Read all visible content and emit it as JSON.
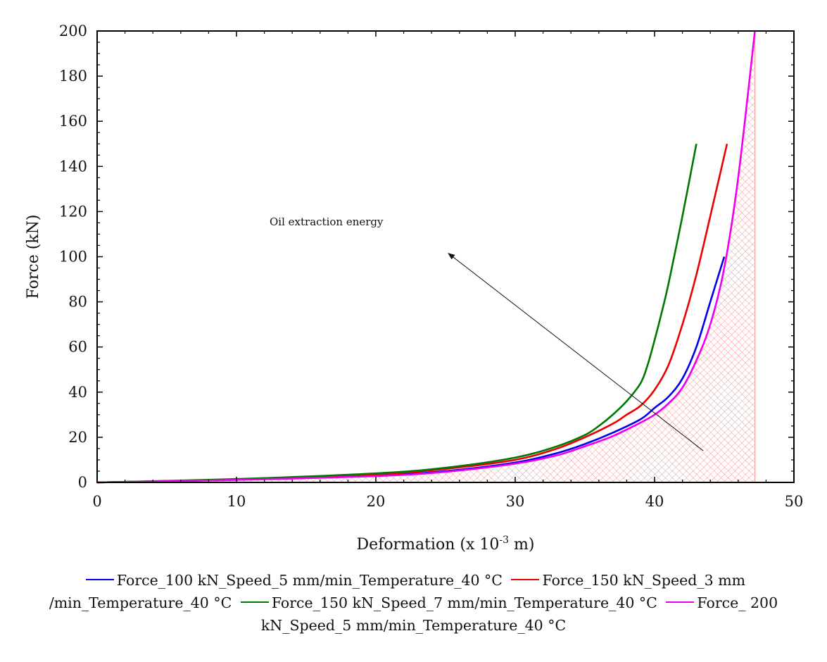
{
  "chart_data": {
    "type": "line",
    "title": "",
    "xlabel": "Deformation (x 10-3 m)",
    "xlabel_main": "Deformation (x 10",
    "xlabel_sup": "-3",
    "xlabel_tail": " m)",
    "ylabel": "Force (kN)",
    "xlim": [
      0,
      50
    ],
    "ylim": [
      0,
      200
    ],
    "x_ticks": [
      0,
      10,
      20,
      30,
      40,
      50
    ],
    "y_ticks": [
      0,
      20,
      40,
      60,
      80,
      100,
      120,
      140,
      160,
      180,
      200
    ],
    "grid": false,
    "legend_position": "bottom",
    "annotation": {
      "text": "Oil extraction energy",
      "arrow_from": [
        43.5,
        14
      ],
      "arrow_to": [
        25.2,
        101.5
      ]
    },
    "shaded_area": {
      "label": "Oil extraction energy",
      "series": "Force_ 200 kN_Speed_5 mm/min_Temperature_40 °C",
      "x_end": 47.2,
      "color": "#f4a6a6"
    },
    "series": [
      {
        "name": "Force_100 kN_Speed_5 mm/min_Temperature_40 °C",
        "color": "#0000ee",
        "x": [
          0,
          10,
          20,
          25,
          30,
          33,
          35,
          37,
          39,
          40,
          41,
          42,
          43,
          44,
          45
        ],
        "y": [
          0,
          1.2,
          3,
          5,
          8.8,
          13,
          17,
          22,
          28,
          33,
          38,
          46,
          60,
          80,
          100
        ]
      },
      {
        "name": "Force_150 kN_Speed_3 mm/min_Temperature_40 °C",
        "color": "#ee0000",
        "x": [
          0,
          10,
          20,
          25,
          30,
          33,
          35,
          37,
          38,
          39,
          40,
          41,
          42,
          43,
          44,
          45.2
        ],
        "y": [
          0,
          1.3,
          3.5,
          6,
          10,
          15,
          20,
          26,
          30,
          34,
          41,
          52,
          70,
          92,
          118,
          150
        ]
      },
      {
        "name": "Force_150 kN_Speed_7 mm/min_Temperature_40 °C",
        "color": "#007700",
        "x": [
          0,
          10,
          20,
          25,
          30,
          33,
          35,
          36,
          37,
          38,
          39,
          39.5,
          40,
          40.5,
          41,
          42,
          43
        ],
        "y": [
          0,
          1.5,
          4,
          6.5,
          11,
          16,
          21,
          25,
          30,
          36,
          44,
          52,
          63,
          75,
          88,
          118,
          150
        ]
      },
      {
        "name": "Force_ 200 kN_Speed_5 mm/min_Temperature_40 °C",
        "color": "#ee00ee",
        "x": [
          0,
          10,
          20,
          25,
          30,
          33,
          35,
          37,
          39,
          40,
          41,
          42,
          43,
          44,
          45,
          46,
          47.2
        ],
        "y": [
          0,
          1.1,
          2.8,
          4.7,
          8.3,
          12,
          16,
          20.5,
          26.5,
          30,
          35,
          42,
          54,
          70,
          95,
          135,
          200
        ]
      }
    ]
  },
  "legend": {
    "entries": [
      "Force_100 kN_Speed_5 mm/min_Temperature_40 °C",
      "Force_150 kN_Speed_3 mm /min_Temperature_40 °C",
      "Force_150 kN_Speed_7 mm/min_Temperature_40 °C",
      "Force_ 200 kN_Speed_5 mm/min_Temperature_40 °C"
    ]
  }
}
